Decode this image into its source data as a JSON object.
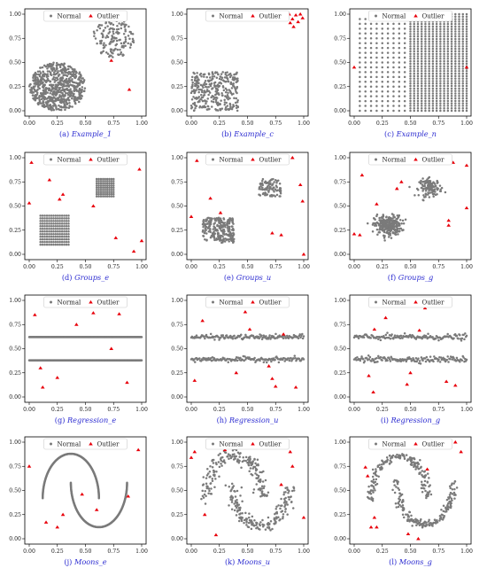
{
  "legend": {
    "normal": "Normal",
    "outlier": "Outlier"
  },
  "colors": {
    "normal": "#7a7a7a",
    "outlier": "#e8000b",
    "caption": "#2a2ad0",
    "axis": "#000000"
  },
  "axis_ticks": [
    "0.00",
    "0.25",
    "0.50",
    "0.75",
    "1.00"
  ],
  "chart_data": [
    {
      "type": "scatter",
      "caption_label": "(a)",
      "caption_name": "Example_1",
      "xlim": [
        -0.05,
        1.05
      ],
      "ylim": [
        -0.05,
        1.05
      ],
      "legend_position": "top-center",
      "normal_pattern": [
        {
          "shape": "ellipse",
          "center": [
            0.25,
            0.25
          ],
          "radius": [
            0.25,
            0.25
          ],
          "count": 700
        },
        {
          "shape": "ellipse",
          "center": [
            0.75,
            0.75
          ],
          "radius": [
            0.19,
            0.2
          ],
          "count": 150
        }
      ],
      "outliers": [
        [
          0.73,
          0.52
        ],
        [
          0.89,
          0.22
        ]
      ]
    },
    {
      "type": "scatter",
      "caption_label": "(b)",
      "caption_name": "Example_c",
      "xlim": [
        -0.05,
        1.05
      ],
      "ylim": [
        -0.05,
        1.05
      ],
      "legend_position": "top-center",
      "normal_pattern": [
        {
          "shape": "rect",
          "x": [
            0.0,
            0.42
          ],
          "y": [
            0.0,
            0.4
          ],
          "count": 320
        }
      ],
      "outliers": [
        [
          0.87,
          1.0
        ],
        [
          0.9,
          0.95
        ],
        [
          0.93,
          0.99
        ],
        [
          0.88,
          0.91
        ],
        [
          0.95,
          0.92
        ],
        [
          0.97,
          1.0
        ],
        [
          0.91,
          0.87
        ],
        [
          0.99,
          0.96
        ]
      ]
    },
    {
      "type": "scatter",
      "caption_label": "(c)",
      "caption_name": "Example_n",
      "xlim": [
        -0.05,
        1.05
      ],
      "ylim": [
        -0.05,
        1.05
      ],
      "legend_position": "top-center",
      "normal_pattern": [
        {
          "shape": "grid",
          "x": [
            0.05,
            0.45
          ],
          "y": [
            0.0,
            0.95
          ],
          "nx": 9,
          "ny": 20
        },
        {
          "shape": "grid",
          "x": [
            0.5,
            1.0
          ],
          "y": [
            0.0,
            1.0
          ],
          "nx": 16,
          "ny": 40
        }
      ],
      "outliers": [
        [
          0.0,
          0.45
        ],
        [
          1.0,
          0.45
        ]
      ]
    },
    {
      "type": "scatter",
      "caption_label": "(d)",
      "caption_name": "Groups_e",
      "xlim": [
        -0.05,
        1.05
      ],
      "ylim": [
        -0.05,
        1.05
      ],
      "legend_position": "top-center",
      "normal_pattern": [
        {
          "shape": "grid",
          "x": [
            0.1,
            0.35
          ],
          "y": [
            0.1,
            0.4
          ],
          "nx": 14,
          "ny": 12
        },
        {
          "shape": "grid",
          "x": [
            0.6,
            0.75
          ],
          "y": [
            0.6,
            0.78
          ],
          "nx": 9,
          "ny": 9
        }
      ],
      "outliers": [
        [
          0.02,
          0.95
        ],
        [
          0.0,
          0.53
        ],
        [
          0.18,
          0.77
        ],
        [
          0.27,
          0.57
        ],
        [
          0.3,
          0.62
        ],
        [
          0.57,
          0.5
        ],
        [
          0.77,
          0.17
        ],
        [
          0.93,
          0.03
        ],
        [
          0.98,
          0.88
        ],
        [
          1.0,
          0.14
        ]
      ]
    },
    {
      "type": "scatter",
      "caption_label": "(e)",
      "caption_name": "Groups_u",
      "xlim": [
        -0.05,
        1.05
      ],
      "ylim": [
        -0.05,
        1.05
      ],
      "legend_position": "top-center",
      "normal_pattern": [
        {
          "shape": "rect",
          "x": [
            0.1,
            0.38
          ],
          "y": [
            0.12,
            0.38
          ],
          "count": 240
        },
        {
          "shape": "rect",
          "x": [
            0.6,
            0.8
          ],
          "y": [
            0.6,
            0.78
          ],
          "count": 90
        }
      ],
      "outliers": [
        [
          0.05,
          0.97
        ],
        [
          0.0,
          0.39
        ],
        [
          0.17,
          0.58
        ],
        [
          0.26,
          0.43
        ],
        [
          0.72,
          0.22
        ],
        [
          0.8,
          0.2
        ],
        [
          0.9,
          1.0
        ],
        [
          0.97,
          0.72
        ],
        [
          0.99,
          0.55
        ],
        [
          1.0,
          0.0
        ]
      ]
    },
    {
      "type": "scatter",
      "caption_label": "(f)",
      "caption_name": "Groups_g",
      "xlim": [
        -0.05,
        1.05
      ],
      "ylim": [
        -0.05,
        1.05
      ],
      "legend_position": "top-center",
      "normal_pattern": [
        {
          "shape": "gauss",
          "center": [
            0.3,
            0.3
          ],
          "sd": [
            0.06,
            0.05
          ],
          "count": 280
        },
        {
          "shape": "gauss",
          "center": [
            0.68,
            0.69
          ],
          "sd": [
            0.05,
            0.045
          ],
          "count": 120
        }
      ],
      "outliers": [
        [
          0.0,
          0.21
        ],
        [
          0.05,
          0.2
        ],
        [
          0.07,
          0.82
        ],
        [
          0.2,
          0.52
        ],
        [
          0.38,
          0.68
        ],
        [
          0.42,
          0.75
        ],
        [
          0.84,
          0.3
        ],
        [
          0.84,
          0.35
        ],
        [
          0.88,
          0.95
        ],
        [
          1.0,
          0.48
        ],
        [
          1.0,
          0.92
        ]
      ]
    },
    {
      "type": "scatter",
      "caption_label": "(g)",
      "caption_name": "Regression_e",
      "xlim": [
        -0.05,
        1.05
      ],
      "ylim": [
        -0.05,
        1.05
      ],
      "legend_position": "top-center",
      "normal_pattern": [
        {
          "shape": "line",
          "x": [
            0.0,
            1.0
          ],
          "y": 0.62,
          "noise": 0.0,
          "count": 240
        },
        {
          "shape": "line",
          "x": [
            0.0,
            1.0
          ],
          "y": 0.38,
          "noise": 0.0,
          "count": 240
        }
      ],
      "outliers": [
        [
          0.05,
          0.85
        ],
        [
          0.1,
          0.3
        ],
        [
          0.12,
          0.1
        ],
        [
          0.18,
          0.94
        ],
        [
          0.25,
          0.2
        ],
        [
          0.42,
          0.75
        ],
        [
          0.57,
          0.87
        ],
        [
          0.73,
          0.5
        ],
        [
          0.8,
          0.86
        ],
        [
          0.87,
          0.15
        ]
      ]
    },
    {
      "type": "scatter",
      "caption_label": "(h)",
      "caption_name": "Regression_u",
      "xlim": [
        -0.05,
        1.05
      ],
      "ylim": [
        -0.05,
        1.05
      ],
      "legend_position": "top-center",
      "normal_pattern": [
        {
          "shape": "line",
          "x": [
            0.0,
            1.0
          ],
          "y": 0.62,
          "noise": 0.012,
          "count": 150
        },
        {
          "shape": "line",
          "x": [
            0.0,
            1.0
          ],
          "y": 0.39,
          "noise": 0.012,
          "count": 150
        }
      ],
      "outliers": [
        [
          0.03,
          0.17
        ],
        [
          0.1,
          0.79
        ],
        [
          0.4,
          0.25
        ],
        [
          0.48,
          0.88
        ],
        [
          0.52,
          0.7
        ],
        [
          0.69,
          0.32
        ],
        [
          0.72,
          0.19
        ],
        [
          0.75,
          0.11
        ],
        [
          0.82,
          0.65
        ],
        [
          0.93,
          0.1
        ]
      ]
    },
    {
      "type": "scatter",
      "caption_label": "(i)",
      "caption_name": "Regression_g",
      "xlim": [
        -0.05,
        1.05
      ],
      "ylim": [
        -0.05,
        1.05
      ],
      "legend_position": "top-center",
      "normal_pattern": [
        {
          "shape": "line",
          "x": [
            0.0,
            1.0
          ],
          "y": 0.62,
          "noise": 0.015,
          "count": 150
        },
        {
          "shape": "line",
          "x": [
            0.0,
            1.0
          ],
          "y": 0.39,
          "noise": 0.015,
          "count": 150
        }
      ],
      "outliers": [
        [
          0.13,
          0.22
        ],
        [
          0.17,
          0.05
        ],
        [
          0.18,
          0.7
        ],
        [
          0.2,
          0.97
        ],
        [
          0.22,
          0.95
        ],
        [
          0.28,
          0.82
        ],
        [
          0.47,
          0.13
        ],
        [
          0.5,
          0.25
        ],
        [
          0.58,
          0.69
        ],
        [
          0.63,
          0.92
        ],
        [
          0.82,
          0.16
        ],
        [
          0.9,
          0.12
        ]
      ]
    },
    {
      "type": "scatter",
      "caption_label": "(j)",
      "caption_name": "Moons_e",
      "xlim": [
        -0.05,
        1.05
      ],
      "ylim": [
        -0.05,
        1.05
      ],
      "legend_position": "top-center",
      "normal_pattern": [
        {
          "shape": "arc",
          "center": [
            0.37,
            0.42
          ],
          "radius": [
            0.25,
            0.46
          ],
          "from": 0,
          "to": 180,
          "count": 220
        },
        {
          "shape": "arc",
          "center": [
            0.62,
            0.58
          ],
          "radius": [
            0.25,
            0.46
          ],
          "from": 180,
          "to": 360,
          "count": 220
        }
      ],
      "outliers": [
        [
          0.0,
          0.75
        ],
        [
          0.15,
          0.17
        ],
        [
          0.25,
          0.12
        ],
        [
          0.3,
          0.25
        ],
        [
          0.47,
          0.46
        ],
        [
          0.6,
          0.3
        ],
        [
          0.62,
          0.94
        ],
        [
          0.88,
          0.44
        ],
        [
          0.97,
          0.92
        ]
      ]
    },
    {
      "type": "scatter",
      "caption_label": "(k)",
      "caption_name": "Moons_u",
      "xlim": [
        -0.05,
        1.05
      ],
      "ylim": [
        -0.05,
        1.05
      ],
      "legend_position": "top-center",
      "normal_pattern": [
        {
          "shape": "arc",
          "center": [
            0.38,
            0.42
          ],
          "radius": [
            0.25,
            0.44
          ],
          "from": 0,
          "to": 180,
          "noise": 0.03,
          "count": 180
        },
        {
          "shape": "arc",
          "center": [
            0.62,
            0.58
          ],
          "radius": [
            0.25,
            0.44
          ],
          "from": 180,
          "to": 360,
          "noise": 0.03,
          "count": 180
        }
      ],
      "outliers": [
        [
          0.0,
          0.84
        ],
        [
          0.03,
          0.9
        ],
        [
          0.12,
          0.25
        ],
        [
          0.22,
          0.04
        ],
        [
          0.3,
          0.92
        ],
        [
          0.8,
          0.56
        ],
        [
          0.88,
          0.9
        ],
        [
          0.9,
          0.75
        ],
        [
          1.0,
          0.22
        ]
      ]
    },
    {
      "type": "scatter",
      "caption_label": "(l)",
      "caption_name": "Moons_g",
      "xlim": [
        -0.05,
        1.05
      ],
      "ylim": [
        -0.05,
        1.05
      ],
      "legend_position": "top-center",
      "normal_pattern": [
        {
          "shape": "arc",
          "center": [
            0.4,
            0.42
          ],
          "radius": [
            0.25,
            0.43
          ],
          "from": 0,
          "to": 180,
          "noise": 0.02,
          "count": 180
        },
        {
          "shape": "arc",
          "center": [
            0.63,
            0.58
          ],
          "radius": [
            0.25,
            0.43
          ],
          "from": 180,
          "to": 360,
          "noise": 0.02,
          "count": 180
        }
      ],
      "outliers": [
        [
          0.1,
          0.74
        ],
        [
          0.12,
          0.65
        ],
        [
          0.15,
          0.12
        ],
        [
          0.18,
          0.22
        ],
        [
          0.2,
          0.12
        ],
        [
          0.48,
          0.05
        ],
        [
          0.57,
          0.0
        ],
        [
          0.65,
          0.72
        ],
        [
          0.9,
          1.0
        ],
        [
          0.95,
          0.9
        ]
      ]
    }
  ]
}
